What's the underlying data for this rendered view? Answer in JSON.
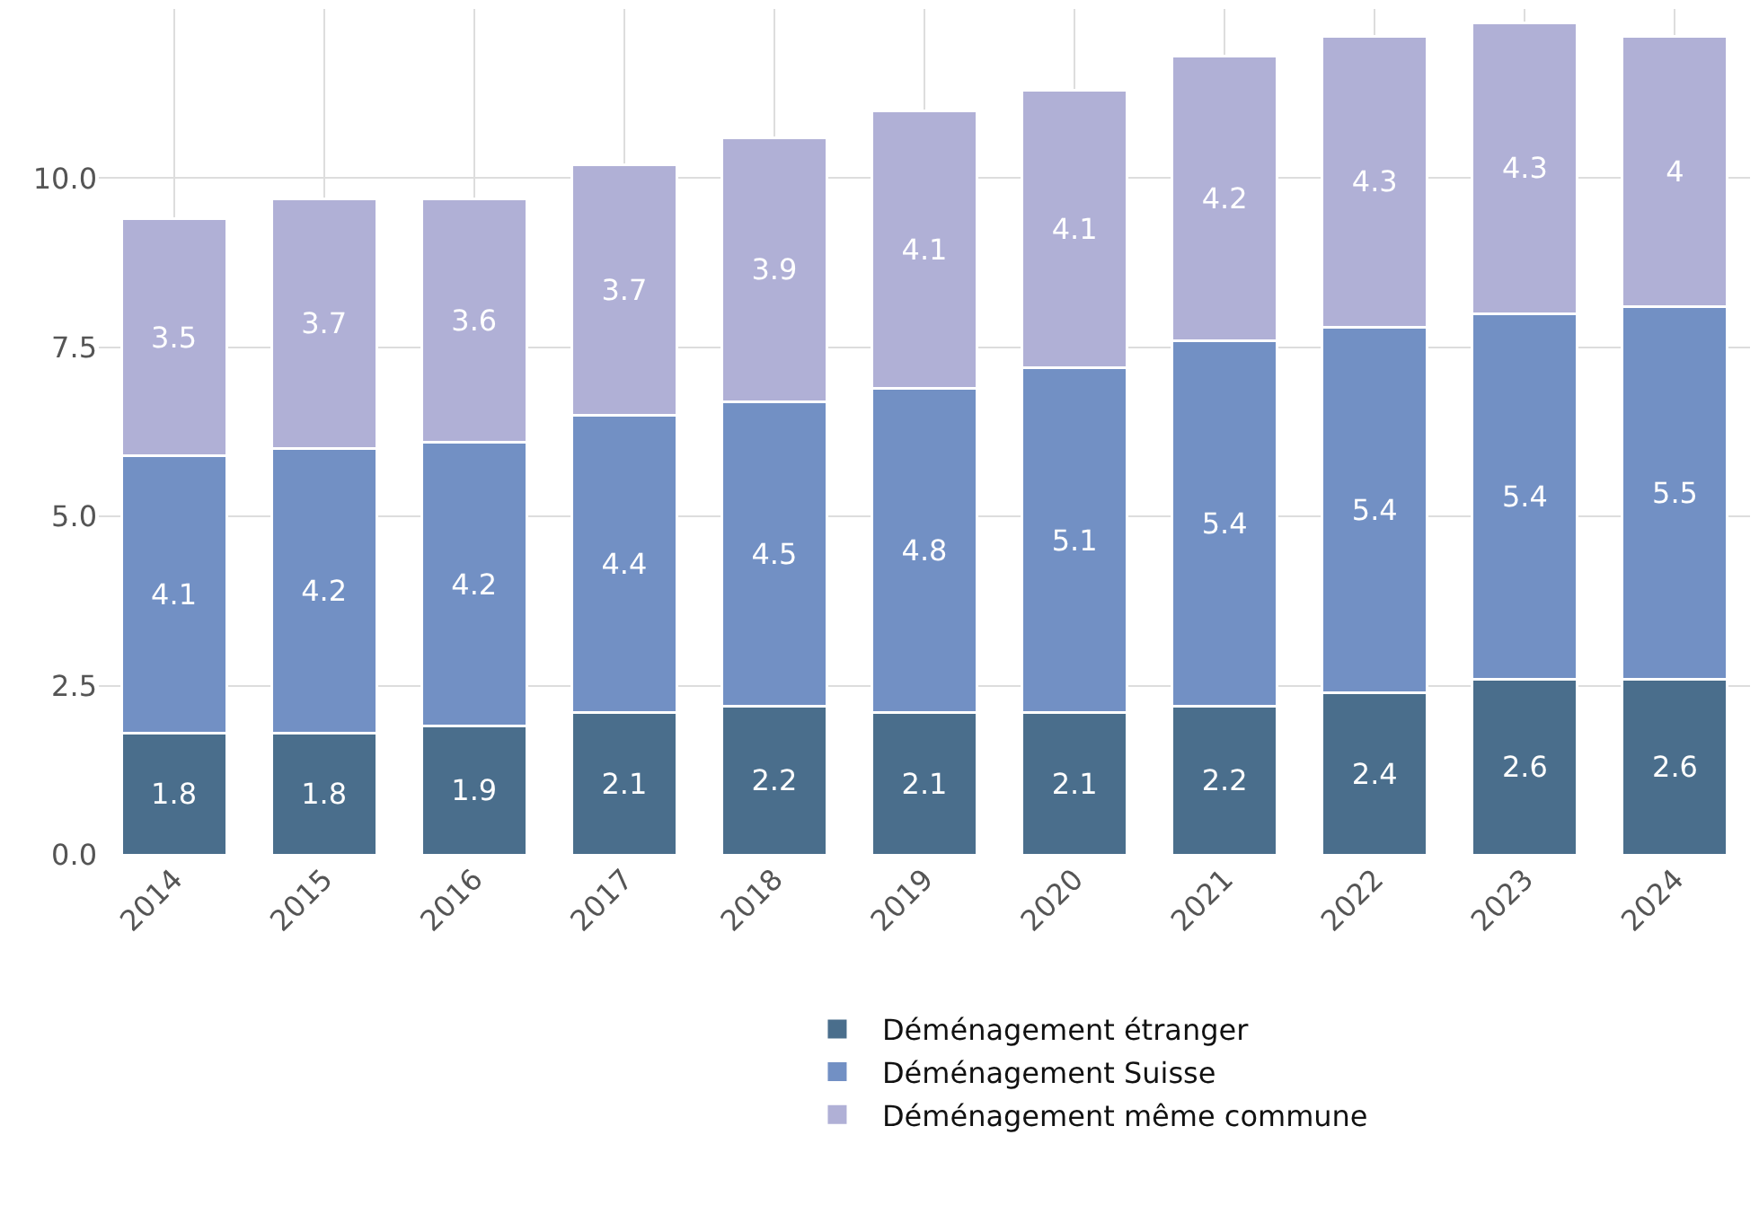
{
  "chart_data": {
    "type": "bar",
    "stacked": true,
    "data_labels": true,
    "grid": true,
    "legend": "bottom",
    "categories": [
      "2014",
      "2015",
      "2016",
      "2017",
      "2018",
      "2019",
      "2020",
      "2021",
      "2022",
      "2023",
      "2024"
    ],
    "series": [
      {
        "name": "Déménagement étranger",
        "color": "#4a6e8c",
        "values": [
          1.8,
          1.8,
          1.9,
          2.1,
          2.2,
          2.1,
          2.1,
          2.2,
          2.4,
          2.6,
          2.6
        ]
      },
      {
        "name": "Déménagement Suisse",
        "color": "#7290c4",
        "values": [
          4.1,
          4.2,
          4.2,
          4.4,
          4.5,
          4.8,
          5.1,
          5.4,
          5.4,
          5.4,
          5.5
        ]
      },
      {
        "name": "Déménagement même commune",
        "color": "#b0b0d6",
        "values": [
          3.5,
          3.7,
          3.6,
          3.7,
          3.9,
          4.1,
          4.1,
          4.2,
          4.3,
          4.3,
          4
        ]
      }
    ],
    "ylim": [
      0,
      12.5
    ],
    "yticks": [
      {
        "value": 0,
        "label": "0.0"
      },
      {
        "value": 2.5,
        "label": "2.5"
      },
      {
        "value": 5,
        "label": "5.0"
      },
      {
        "value": 7.5,
        "label": "7.5"
      },
      {
        "value": 10,
        "label": "10.0"
      }
    ]
  }
}
